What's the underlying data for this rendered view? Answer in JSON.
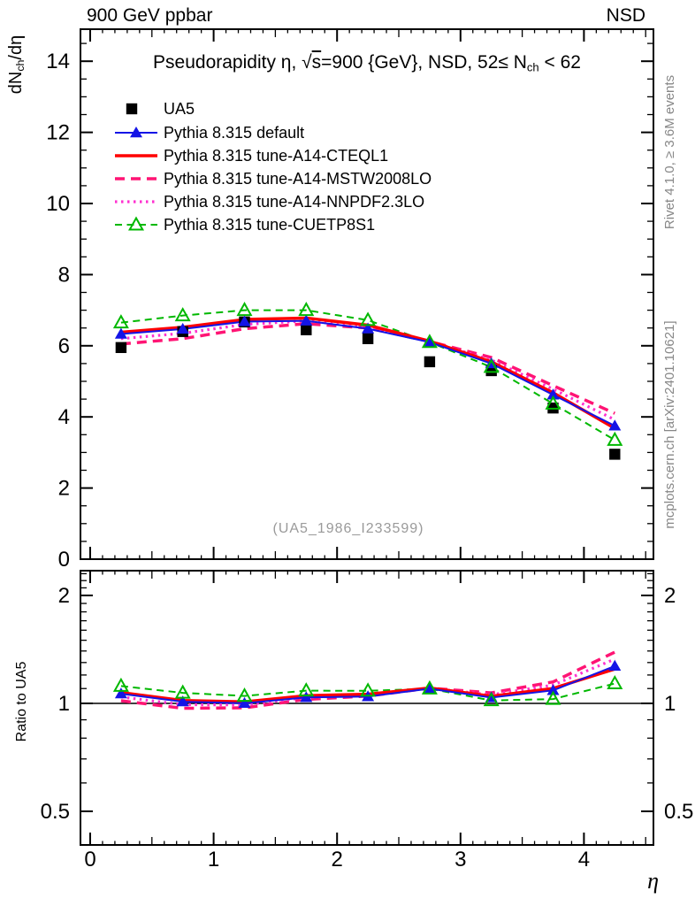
{
  "header": {
    "left": "900 GeV ppbar",
    "right": "NSD"
  },
  "title": {
    "prefix": "Pseudorapidity η, ",
    "sqrt_sym": "√",
    "sqrt_arg": "s",
    "mid": "=900 {GeV}, NSD, 52≤ N",
    "sub_text": "ch",
    "suffix": " < 62"
  },
  "ylabel_main": {
    "p1": "dN",
    "sub": "ch",
    "p2": "/dη"
  },
  "ylabel_ratio": "Ratio to UA5",
  "xlabel": "η",
  "side_notes": {
    "top": "Rivet 4.1.0, ≥ 3.6M events",
    "bottom": "mcplots.cern.ch [arXiv:2401.10621]"
  },
  "watermark": "(UA5_1986_I233599)",
  "chart_data": {
    "type": "line",
    "title": "Pseudorapidity η, √s=900 {GeV}, NSD, 52≤ Nch < 62",
    "xlabel": "η",
    "x": [
      0.25,
      0.75,
      1.25,
      1.75,
      2.25,
      2.75,
      3.25,
      3.75,
      4.25
    ],
    "x_axis": {
      "range": [
        -0.08,
        4.56
      ],
      "major_ticks": [
        0,
        1,
        2,
        3,
        4
      ],
      "medium_step": 0.5,
      "minor_step": 0.1
    },
    "main_panel": {
      "ylabel": "dN_ch/dη",
      "ylim": [
        0,
        14.9
      ],
      "major_step": 2,
      "minor_step": 0.5,
      "tick_labels": [
        0,
        2,
        4,
        6,
        8,
        10,
        12,
        14
      ]
    },
    "ratio_panel": {
      "ylabel": "Ratio to UA5",
      "yscale": "log",
      "ylim": [
        0.4,
        2.34
      ],
      "tick_labels": [
        0.5,
        1,
        2
      ],
      "minor_step": 0.1,
      "reference_line": 1
    },
    "reference_series": {
      "name": "UA5",
      "marker": "filled-square",
      "color": "#000000",
      "values": [
        5.95,
        6.4,
        6.67,
        6.45,
        6.2,
        5.55,
        5.3,
        4.25,
        2.95
      ]
    },
    "series": [
      {
        "name": "Pythia 8.315 default",
        "color": "#1414e6",
        "line": "solid",
        "width": 2,
        "marker": "filled-triangle",
        "values": [
          6.33,
          6.47,
          6.68,
          6.7,
          6.48,
          6.1,
          5.5,
          4.62,
          3.75
        ],
        "ratio_to_ua5": [
          1.064,
          1.011,
          1.001,
          1.039,
          1.045,
          1.099,
          1.038,
          1.087,
          1.271
        ]
      },
      {
        "name": "Pythia 8.315 tune-A14-CTEQL1",
        "color": "#ff0000",
        "line": "solid",
        "width": 3.5,
        "marker": null,
        "values": [
          6.38,
          6.52,
          6.74,
          6.78,
          6.58,
          6.13,
          5.55,
          4.68,
          3.68
        ],
        "ratio_to_ua5": [
          1.072,
          1.019,
          1.01,
          1.051,
          1.061,
          1.104,
          1.047,
          1.101,
          1.247
        ]
      },
      {
        "name": "Pythia 8.315 tune-A14-MSTW2008LO",
        "color": "#ff1474",
        "line": "dashed",
        "width": 3.5,
        "marker": null,
        "values": [
          6.05,
          6.2,
          6.48,
          6.62,
          6.5,
          6.12,
          5.67,
          4.88,
          4.1
        ],
        "ratio_to_ua5": [
          1.017,
          0.969,
          0.972,
          1.026,
          1.048,
          1.103,
          1.07,
          1.148,
          1.39
        ]
      },
      {
        "name": "Pythia 8.315 tune-A14-NNPDF2.3LO",
        "color": "#ff30d0",
        "line": "dotted",
        "width": 3.2,
        "marker": null,
        "values": [
          6.2,
          6.35,
          6.6,
          6.7,
          6.54,
          6.12,
          5.6,
          4.78,
          3.92
        ],
        "ratio_to_ua5": [
          1.042,
          0.992,
          0.99,
          1.039,
          1.055,
          1.103,
          1.057,
          1.125,
          1.329
        ]
      },
      {
        "name": "Pythia 8.315 tune-CUETP8S1",
        "color": "#00b800",
        "line": "dashed-small",
        "width": 2,
        "marker": "open-triangle",
        "values": [
          6.65,
          6.85,
          7.0,
          7.0,
          6.72,
          6.1,
          5.4,
          4.37,
          3.35
        ],
        "ratio_to_ua5": [
          1.118,
          1.07,
          1.049,
          1.085,
          1.084,
          1.099,
          1.019,
          1.028,
          1.136
        ]
      }
    ]
  }
}
